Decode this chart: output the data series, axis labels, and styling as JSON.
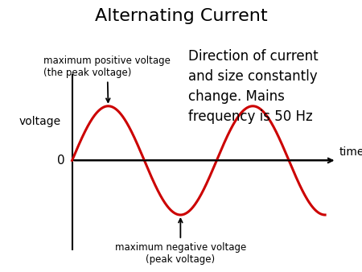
{
  "title": "Alternating Current",
  "title_fontsize": 16,
  "sine_color": "#cc0000",
  "sine_linewidth": 2.2,
  "axis_color": "#000000",
  "background_color": "#ffffff",
  "ylabel": "voltage",
  "ylabel_fontsize": 10,
  "time_label": "time",
  "time_fontsize": 10,
  "zero_label": "0",
  "zero_fontsize": 11,
  "annotation_pos_text": "maximum positive voltage\n(the peak voltage)",
  "annotation_neg_text": "maximum negative voltage\n(peak voltage)",
  "annotation_fontsize": 8.5,
  "side_text": "Direction of current\nand size constantly\nchange. Mains\nfrequency is 50 Hz",
  "side_text_fontsize": 12,
  "num_cycles": 1.75,
  "amplitude": 1.0,
  "xlim": [
    -0.3,
    11.5
  ],
  "ylim": [
    -1.65,
    1.75
  ]
}
